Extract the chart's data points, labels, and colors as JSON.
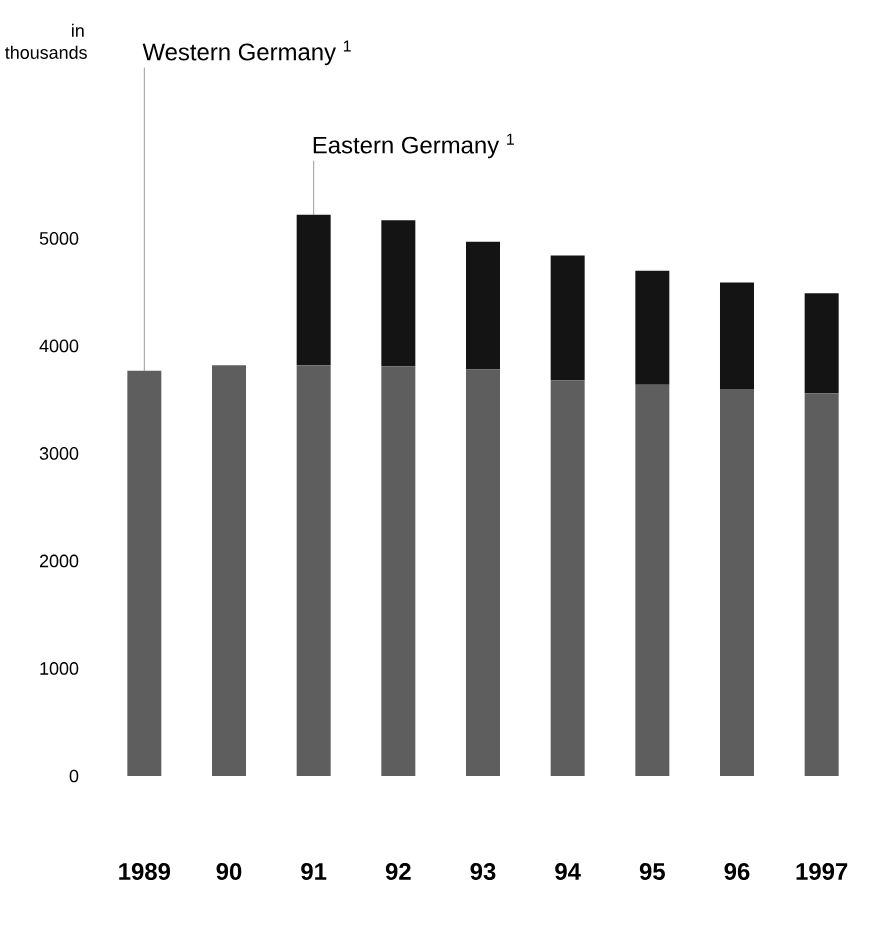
{
  "chart_data": {
    "type": "bar",
    "stacked": true,
    "annotations": [
      "in thousands"
    ],
    "categories": [
      "1989",
      "90",
      "91",
      "92",
      "93",
      "94",
      "95",
      "96",
      "1997"
    ],
    "series": [
      {
        "name": "Western Germany $^{1}$",
        "color": "#5e5e5e",
        "values": [
          3770,
          3820,
          3820,
          3810,
          3780,
          3680,
          3640,
          3600,
          3560
        ]
      },
      {
        "name": "Eastern Germany $^{1}$",
        "color": "#141414",
        "values": [
          null,
          null,
          1400,
          1360,
          1190,
          1160,
          1060,
          990,
          930
        ]
      }
    ],
    "ylim": [
      0,
      5250
    ],
    "yticks": [
      0,
      1000,
      2000,
      3000,
      4000,
      5000
    ],
    "legend": false,
    "grid": false
  }
}
